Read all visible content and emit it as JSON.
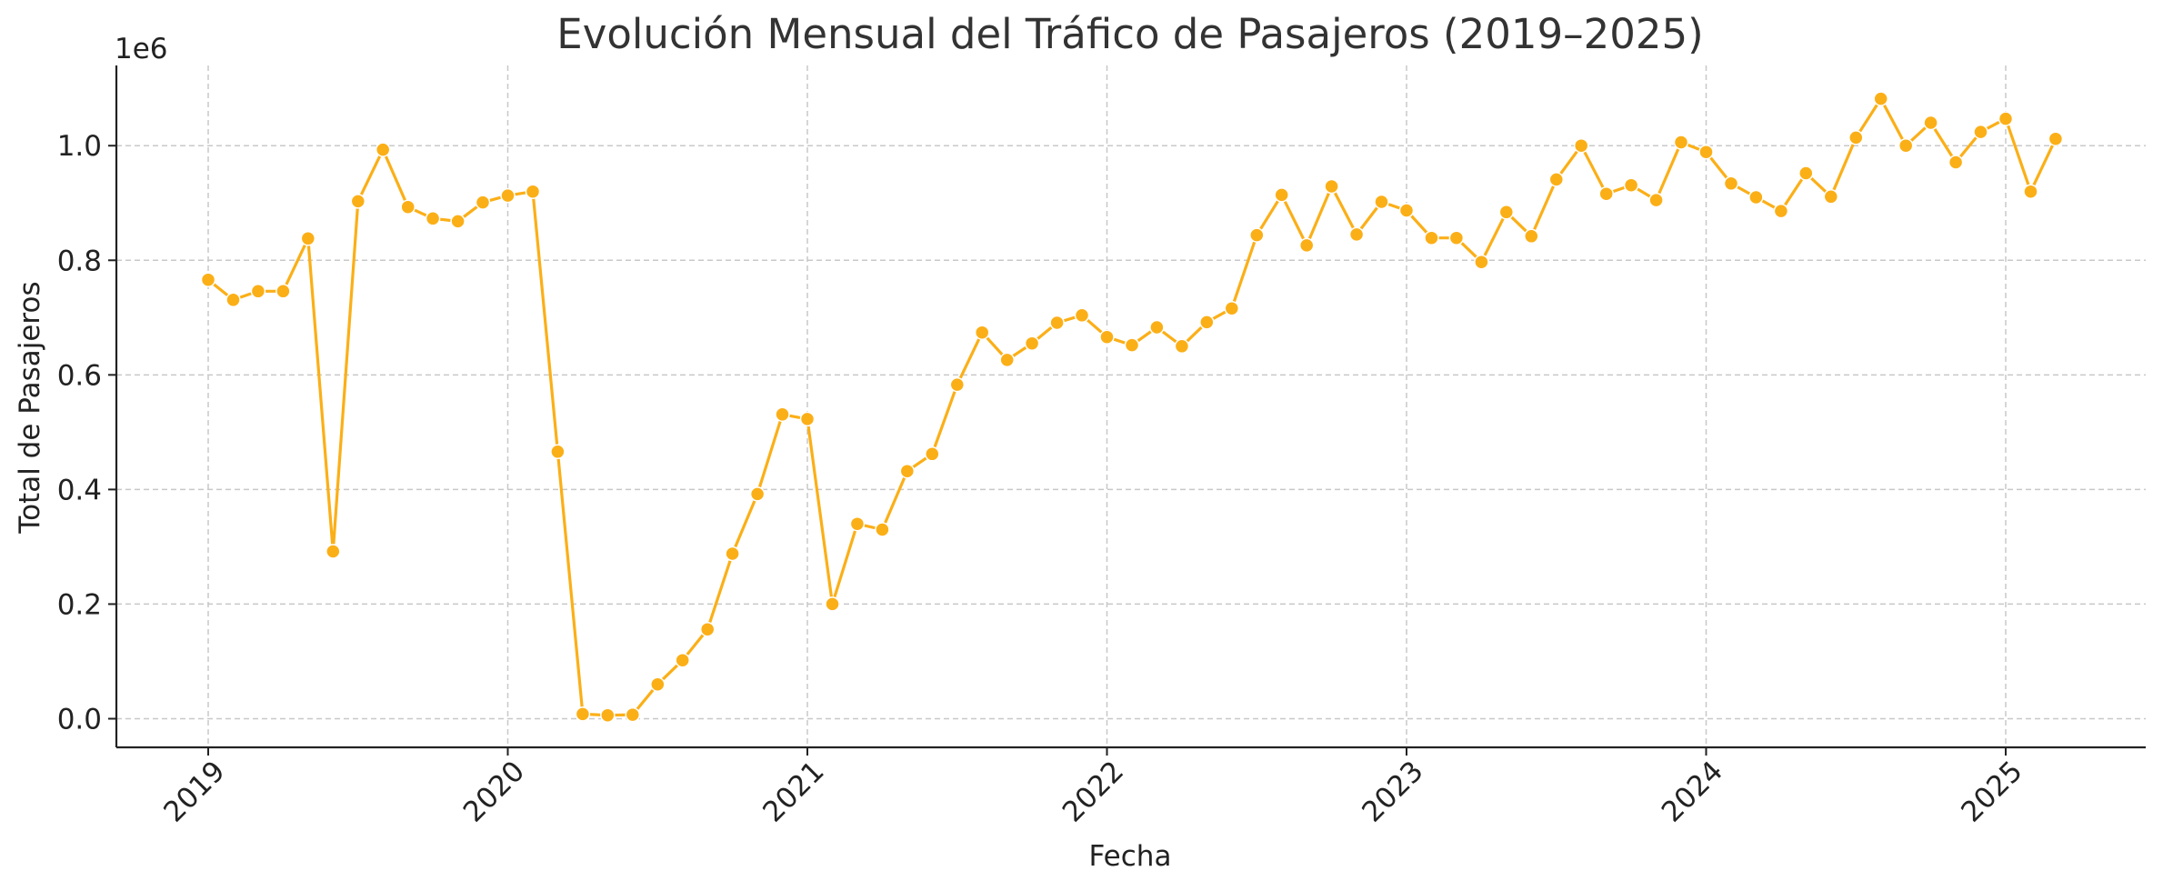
{
  "chart_data": {
    "type": "line",
    "title": "Evolución Mensual del Tráfico de Pasajeros (2019–2025)",
    "xlabel": "Fecha",
    "ylabel": "Total de Pasajeros",
    "y_offset_label": "1e6",
    "ylim": [
      -0.05,
      1.14
    ],
    "y_ticks": [
      0.0,
      0.2,
      0.4,
      0.6,
      0.8,
      1.0
    ],
    "y_tick_labels": [
      "0.0",
      "0.2",
      "0.4",
      "0.6",
      "0.8",
      "1.0"
    ],
    "x_tick_labels": [
      "2019",
      "2020",
      "2021",
      "2022",
      "2023",
      "2024",
      "2025"
    ],
    "grid": true,
    "line_color": "#FBAF17",
    "series": [
      {
        "x": [
          "2019-01",
          "2019-02",
          "2019-03",
          "2019-04",
          "2019-05",
          "2019-06",
          "2019-07",
          "2019-08",
          "2019-09",
          "2019-10",
          "2019-11",
          "2019-12",
          "2020-01",
          "2020-02",
          "2020-03",
          "2020-04",
          "2020-05",
          "2020-06",
          "2020-07",
          "2020-08",
          "2020-09",
          "2020-10",
          "2020-11",
          "2020-12",
          "2021-01",
          "2021-02",
          "2021-03",
          "2021-04",
          "2021-05",
          "2021-06",
          "2021-07",
          "2021-08",
          "2021-09",
          "2021-10",
          "2021-11",
          "2021-12",
          "2022-01",
          "2022-02",
          "2022-03",
          "2022-04",
          "2022-05",
          "2022-06",
          "2022-07",
          "2022-08",
          "2022-09",
          "2022-10",
          "2022-11",
          "2022-12",
          "2023-01",
          "2023-02",
          "2023-03",
          "2023-04",
          "2023-05",
          "2023-06",
          "2023-07",
          "2023-08",
          "2023-09",
          "2023-10",
          "2023-11",
          "2023-12",
          "2024-01",
          "2024-02",
          "2024-03",
          "2024-04",
          "2024-05",
          "2024-06",
          "2024-07",
          "2024-08",
          "2024-09",
          "2024-10",
          "2024-11",
          "2024-12",
          "2025-01",
          "2025-02",
          "2025-03"
        ],
        "values": [
          0.766,
          0.731,
          0.746,
          0.746,
          0.838,
          0.292,
          0.903,
          0.993,
          0.893,
          0.873,
          0.868,
          0.901,
          0.913,
          0.92,
          0.466,
          0.008,
          0.006,
          0.007,
          0.06,
          0.102,
          0.156,
          0.288,
          0.392,
          0.531,
          0.523,
          0.2,
          0.34,
          0.33,
          0.432,
          0.462,
          0.583,
          0.674,
          0.626,
          0.655,
          0.691,
          0.704,
          0.666,
          0.652,
          0.683,
          0.65,
          0.692,
          0.716,
          0.844,
          0.914,
          0.826,
          0.929,
          0.845,
          0.902,
          0.887,
          0.839,
          0.839,
          0.797,
          0.884,
          0.842,
          0.941,
          1.0,
          0.916,
          0.931,
          0.905,
          1.006,
          0.989,
          0.934,
          0.91,
          0.886,
          0.952,
          0.911,
          1.014,
          1.082,
          1.0,
          1.04,
          0.971,
          1.024,
          1.047,
          0.92,
          1.012
        ]
      }
    ]
  }
}
